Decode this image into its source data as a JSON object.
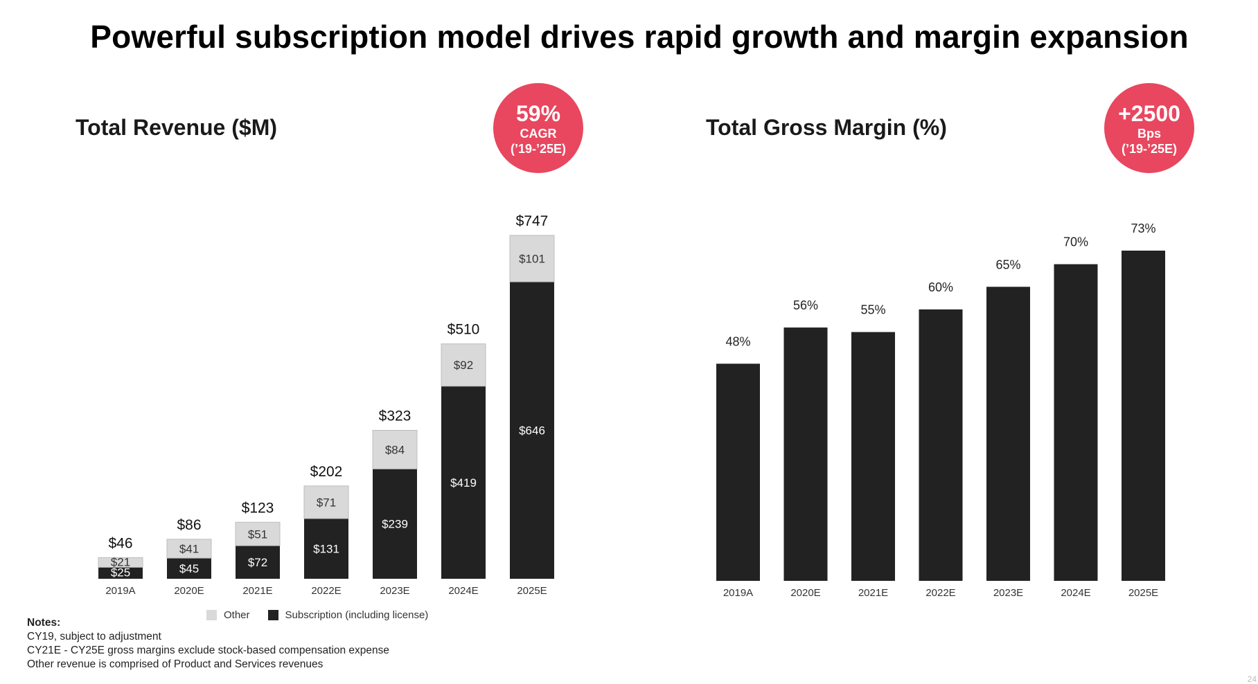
{
  "title": "Powerful subscription model drives rapid growth and margin expansion",
  "colors": {
    "accent": "#e8475f",
    "subscription": "#222222",
    "other": "#d9d9d9"
  },
  "revenue": {
    "title": "Total Revenue ($M)",
    "badge": {
      "value": "59%",
      "label": "CAGR",
      "period": "(’19-’25E)"
    }
  },
  "margin": {
    "title": "Total Gross Margin (%)",
    "badge": {
      "value": "+2500",
      "label": "Bps",
      "period": "(’19-’25E)"
    }
  },
  "legend": {
    "other": "Other",
    "subscription": "Subscription (including license)"
  },
  "notes": {
    "heading": "Notes:",
    "lines": [
      "CY19, subject to adjustment",
      "CY21E - CY25E gross margins exclude stock-based compensation expense",
      "Other revenue is comprised of Product and Services revenues"
    ]
  },
  "page_number": "24",
  "chart_data": [
    {
      "type": "bar",
      "stacked": true,
      "title": "Total Revenue ($M)",
      "categories": [
        "2019A",
        "2020E",
        "2021E",
        "2022E",
        "2023E",
        "2024E",
        "2025E"
      ],
      "series": [
        {
          "name": "Subscription (including license)",
          "values": [
            25,
            45,
            72,
            131,
            239,
            419,
            646
          ],
          "labels": [
            "$25",
            "$45",
            "$72",
            "$131",
            "$239",
            "$419",
            "$646"
          ]
        },
        {
          "name": "Other",
          "values": [
            21,
            41,
            51,
            71,
            84,
            92,
            101
          ],
          "labels": [
            "$21",
            "$41",
            "$51",
            "$71",
            "$84",
            "$92",
            "$101"
          ]
        }
      ],
      "totals": [
        46,
        86,
        123,
        202,
        323,
        510,
        747
      ],
      "total_labels": [
        "$46",
        "$86",
        "$123",
        "$202",
        "$323",
        "$510",
        "$747"
      ],
      "ylim": [
        0,
        747
      ],
      "grid": false,
      "legend_position": "bottom"
    },
    {
      "type": "bar",
      "title": "Total Gross Margin (%)",
      "categories": [
        "2019A",
        "2020E",
        "2021E",
        "2022E",
        "2023E",
        "2024E",
        "2025E"
      ],
      "values": [
        48,
        56,
        55,
        60,
        65,
        70,
        73
      ],
      "value_labels": [
        "48%",
        "56%",
        "55%",
        "60%",
        "65%",
        "70%",
        "73%"
      ],
      "ylim": [
        0,
        73
      ],
      "grid": false,
      "legend_position": "none"
    }
  ]
}
